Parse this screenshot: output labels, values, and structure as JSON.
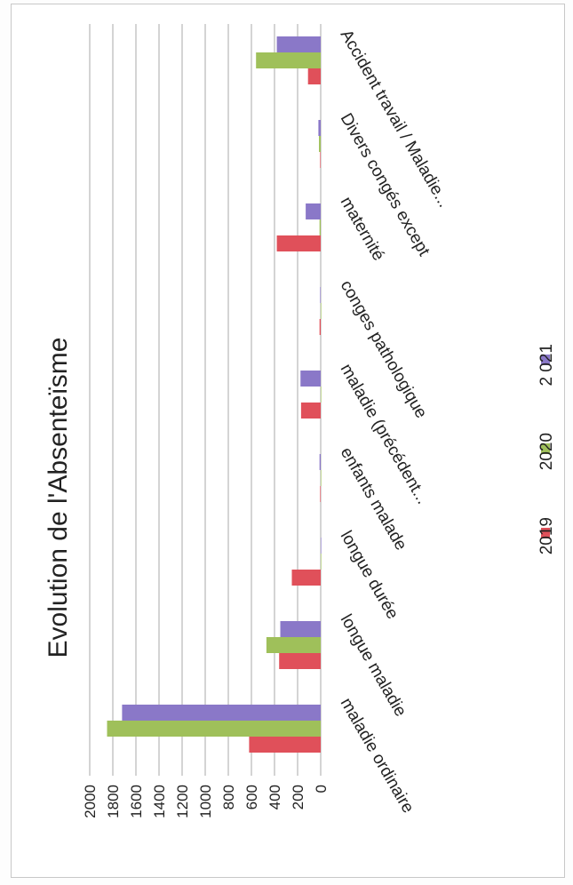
{
  "chart_data": {
    "type": "bar",
    "orientation": "rotated-90-ccw",
    "title": "Evolution de l'Absenteïsme",
    "categories": [
      "maladie ordinaire",
      "longue maladie",
      "longue durée",
      "enfants malade",
      "maladie (précédent...",
      "conges pathologique",
      "maternité",
      "Divers congés except",
      "Accident travail / Maladie..."
    ],
    "series": [
      {
        "name": "2019",
        "color": "#e0505a",
        "values": [
          620,
          360,
          250,
          5,
          170,
          10,
          380,
          5,
          110
        ]
      },
      {
        "name": "2020",
        "color": "#9fc05a",
        "values": [
          1850,
          470,
          0,
          0,
          0,
          0,
          10,
          15,
          560
        ]
      },
      {
        "name": "2 021",
        "color": "#8a78c8",
        "values": [
          1720,
          350,
          0,
          10,
          175,
          5,
          130,
          20,
          380
        ]
      }
    ],
    "yticks": [
      "0",
      "200",
      "400",
      "600",
      "800",
      "1000",
      "1200",
      "1400",
      "1600",
      "1800",
      "2000"
    ],
    "ylim": [
      0,
      2000
    ],
    "grid": true,
    "legend": "bottom"
  }
}
